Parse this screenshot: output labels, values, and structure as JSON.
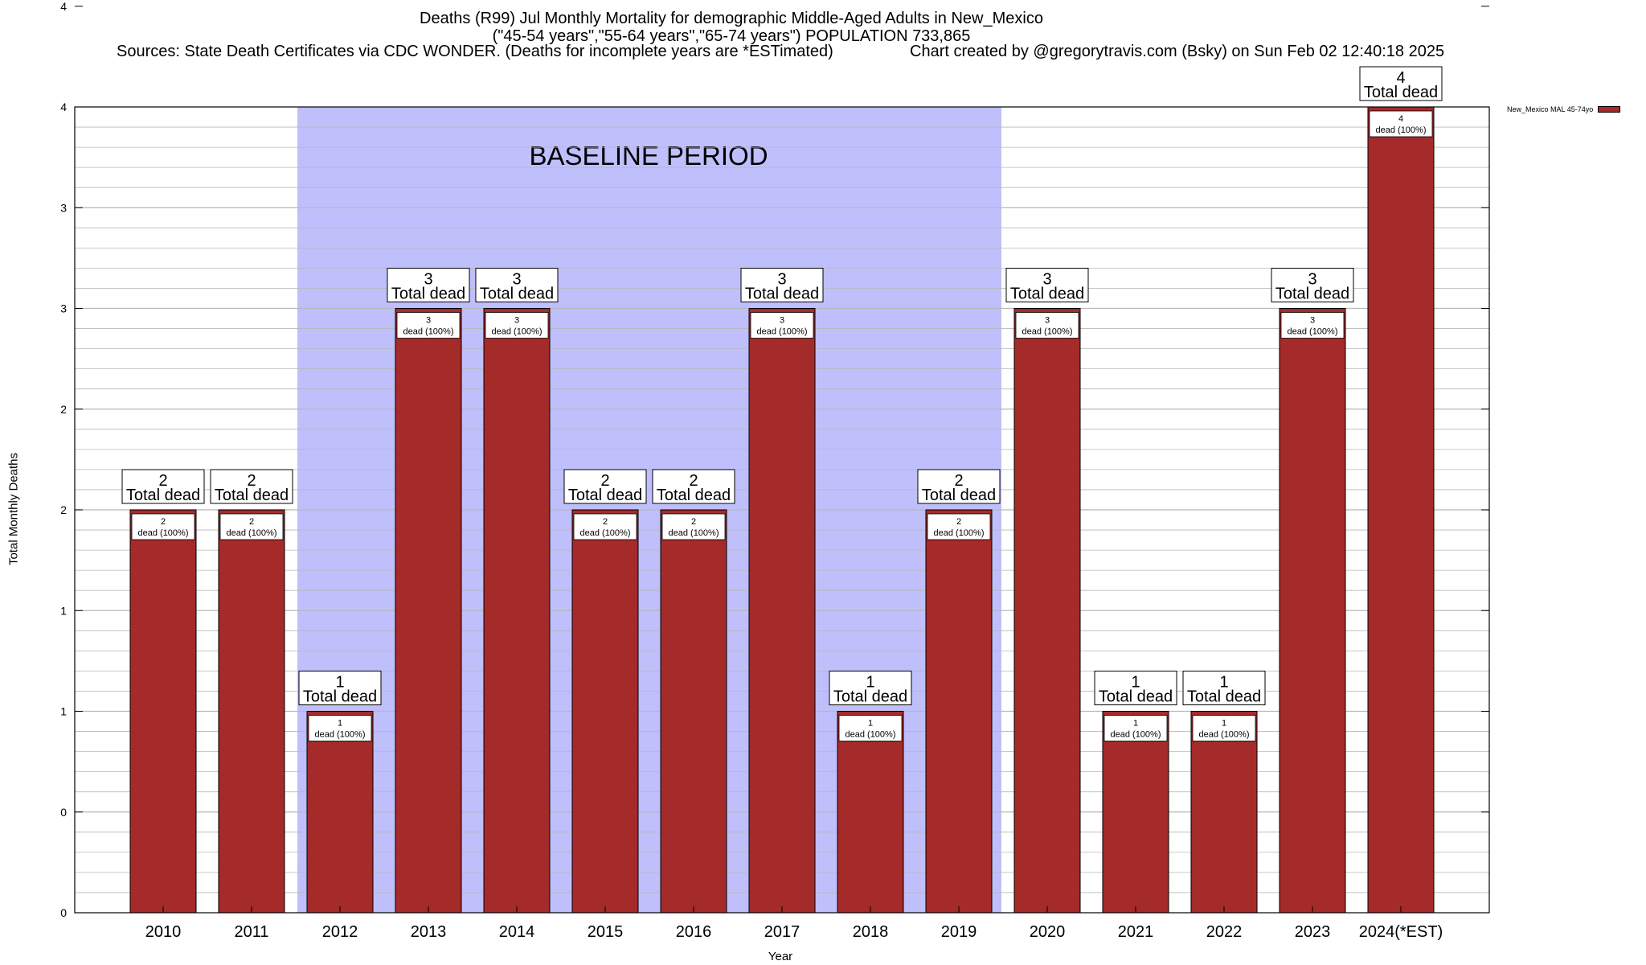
{
  "title_lines": [
    "Deaths (R99) Jul Monthly Mortality for demographic Middle-Aged Adults in New_Mexico",
    "(\"45-54 years\",\"55-64 years\",\"65-74 years\") POPULATION 733,865",
    "Sources: State Death Certificates via CDC WONDER. (Deaths for incomplete years are *ESTimated)",
    "Chart created by @gregorytravis.com (Bsky) on Sun Feb 02 12:40:18 2025"
  ],
  "colors": {
    "bar": "#a52a2a",
    "baseline_band": "#bfbffc",
    "grid": "#b8b8b8"
  },
  "chart_data": {
    "type": "bar",
    "title": "Deaths (R99) Jul Monthly Mortality for demographic Middle-Aged Adults in New_Mexico",
    "xlabel": "Year",
    "ylabel": "Total Monthly Deaths",
    "categories": [
      "2010",
      "2011",
      "2012",
      "2013",
      "2014",
      "2015",
      "2016",
      "2017",
      "2018",
      "2019",
      "2020",
      "2021",
      "2022",
      "2023",
      "2024(*EST)"
    ],
    "series": [
      {
        "name": "New_Mexico MAL 45-74yo",
        "values": [
          2,
          2,
          1,
          3,
          3,
          2,
          2,
          3,
          1,
          2,
          3,
          1,
          1,
          3,
          4
        ]
      }
    ],
    "top_label_suffix": "Total dead",
    "inner_label_suffix": "dead (100%)",
    "ylim": [
      0,
      4
    ],
    "y_tick_labels": [
      "0",
      "0",
      "1",
      "1",
      "2",
      "2",
      "3",
      "3",
      "4",
      "4"
    ],
    "grid": true,
    "legend_position": "top-right",
    "annotation": {
      "text": "BASELINE PERIOD",
      "from": "2012",
      "to": "2019"
    }
  }
}
